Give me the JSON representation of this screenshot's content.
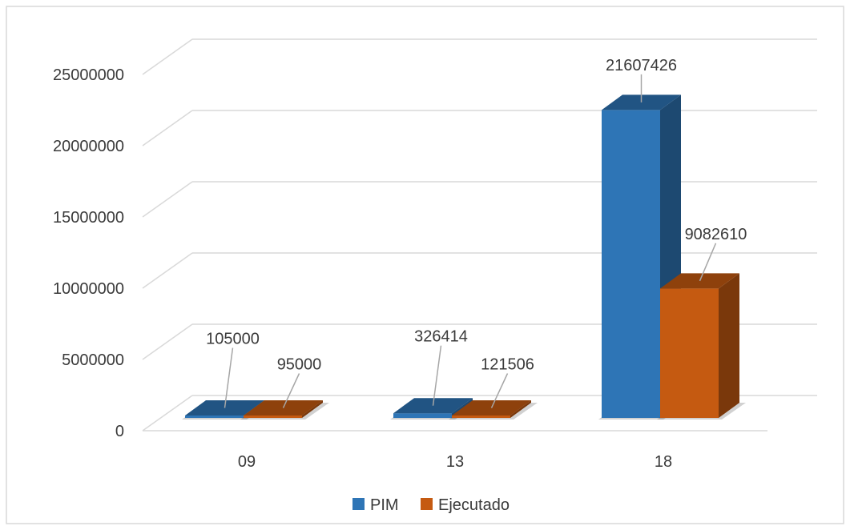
{
  "chart_data": {
    "type": "bar",
    "title": "",
    "xlabel": "",
    "ylabel": "",
    "categories": [
      "09",
      "13",
      "18"
    ],
    "series": [
      {
        "name": "PIM",
        "values": [
          105000,
          326414,
          21607426
        ],
        "color": "#2e75b6"
      },
      {
        "name": "Ejecutado",
        "values": [
          95000,
          121506,
          9082610
        ],
        "color": "#c55a11"
      }
    ],
    "data_labels": [
      [
        "105000",
        "326414",
        "21607426"
      ],
      [
        "95000",
        "121506",
        "9082610"
      ]
    ],
    "ylim": [
      0,
      25000000
    ],
    "yticks": [
      0,
      5000000,
      10000000,
      15000000,
      20000000,
      25000000
    ],
    "ytick_labels": [
      "0",
      "5000000",
      "10000000",
      "15000000",
      "20000000",
      "25000000"
    ],
    "gridlines": true,
    "legend_position": "bottom"
  }
}
